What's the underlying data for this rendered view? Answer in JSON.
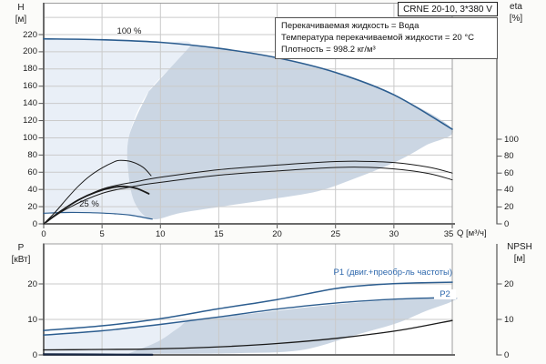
{
  "window": {
    "title_box": "CRNE 20-10, 3*380 V"
  },
  "info_box": {
    "line1": "Перекачиваемая жидкость = Вода",
    "line2": "Температура перекачиваемой жидкости = 20 °C",
    "line3": "Плотность = 998.2 кг/м³"
  },
  "top_chart": {
    "y_axis": {
      "name": "H",
      "unit": "[м]",
      "ticks": [
        0,
        20,
        40,
        60,
        80,
        100,
        120,
        140,
        160,
        180,
        200,
        220
      ]
    },
    "right_axis": {
      "name": "eta",
      "unit": "[%]",
      "ticks": [
        0,
        20,
        40,
        60,
        80,
        100
      ]
    },
    "x_axis": {
      "name": "Q [м³/ч]",
      "ticks": [
        0,
        5,
        10,
        15,
        20,
        25,
        30,
        35
      ]
    },
    "curve_labels": {
      "full_speed": "100 %",
      "min_speed": "25 %"
    }
  },
  "bottom_chart": {
    "y_axis": {
      "name": "P",
      "unit": "[кВт]",
      "ticks": [
        0,
        10,
        20
      ]
    },
    "right_axis": {
      "name": "NPSH",
      "unit": "[м]",
      "ticks": [
        0,
        10,
        20
      ]
    },
    "curve_labels": {
      "p1": "P1 (двиг.+преобр-ль частоты)",
      "p2": "P2"
    }
  },
  "colors": {
    "curve_blue": "#2c5d8f",
    "label_blue": "#2e68ad",
    "fill_light": "#e9eff7",
    "fill_dark": "#cbd6e3",
    "black": "#1a1a1a",
    "navy": "#182743",
    "grid": "#cacaca",
    "frame": "#9e9e9e",
    "axis": "#6a6a6a"
  },
  "chart_data": [
    {
      "type": "line",
      "title": "CRNE 20-10, 3*380 V",
      "xlabel": "Q [м³/ч]",
      "ylabel": "H [м]",
      "y2label": "eta [%]",
      "xlim": [
        0,
        35
      ],
      "ylim": [
        0,
        257
      ],
      "y2lim": [
        0,
        110
      ],
      "grid": true,
      "series": [
        {
          "name": "H_100pct",
          "label": "100 %",
          "axis": "H",
          "points": [
            [
              0,
              215
            ],
            [
              5,
              214
            ],
            [
              10,
              211
            ],
            [
              15,
              204
            ],
            [
              20,
              193
            ],
            [
              25,
              176
            ],
            [
              30,
              150
            ],
            [
              35,
              110
            ]
          ]
        },
        {
          "name": "H_25pct",
          "label": "25 %",
          "axis": "H",
          "points": [
            [
              0,
              12.4
            ],
            [
              2,
              13.2
            ],
            [
              4,
              13
            ],
            [
              6,
              11.8
            ],
            [
              7.5,
              10
            ],
            [
              9.3,
              5.5
            ]
          ]
        },
        {
          "name": "eta_motor",
          "axis": "eta",
          "points": [
            [
              0,
              0
            ],
            [
              2,
              20
            ],
            [
              5,
              41
            ],
            [
              8,
              50
            ],
            [
              10,
              55
            ],
            [
              15,
              64
            ],
            [
              20,
              69.5
            ],
            [
              24,
              73
            ],
            [
              27,
              74
            ],
            [
              30,
              72.5
            ],
            [
              33,
              67
            ],
            [
              35,
              60
            ]
          ]
        },
        {
          "name": "eta_pump",
          "axis": "eta",
          "points": [
            [
              0,
              0
            ],
            [
              2,
              18
            ],
            [
              5,
              36
            ],
            [
              8,
              45
            ],
            [
              10,
              49
            ],
            [
              15,
              57.5
            ],
            [
              20,
              62.5
            ],
            [
              24,
              66
            ],
            [
              27,
              67
            ],
            [
              30,
              65
            ],
            [
              33,
              59.5
            ],
            [
              35,
              52
            ]
          ]
        },
        {
          "name": "eta_25pct_arc",
          "axis": "eta",
          "points": [
            [
              0,
              0
            ],
            [
              1,
              14
            ],
            [
              2,
              30
            ],
            [
              3,
              45
            ],
            [
              4,
              57
            ],
            [
              5,
              66
            ],
            [
              6,
              73
            ],
            [
              6.5,
              75
            ],
            [
              7.5,
              73.5
            ],
            [
              8.5,
              67
            ],
            [
              9.2,
              57
            ]
          ]
        },
        {
          "name": "duty_arc",
          "axis": "H",
          "points": [
            [
              0.2,
              2
            ],
            [
              1.5,
              15
            ],
            [
              3,
              28
            ],
            [
              4.5,
              37
            ],
            [
              6,
              42.5
            ],
            [
              7,
              43.5
            ],
            [
              8,
              41
            ],
            [
              9,
              35
            ]
          ]
        }
      ],
      "regions": [
        {
          "name": "envelope_light",
          "axis": "H",
          "points": [
            [
              0,
              215
            ],
            [
              5,
              214
            ],
            [
              10,
              211
            ],
            [
              12.6,
              207
            ],
            [
              9,
              154
            ],
            [
              7.3,
              101
            ],
            [
              7.3,
              54
            ],
            [
              7.9,
              22
            ],
            [
              9.3,
              5.5
            ],
            [
              6.8,
              10.5
            ],
            [
              3.7,
              13
            ],
            [
              0,
              12.4
            ]
          ]
        },
        {
          "name": "envelope_dark",
          "axis": "H",
          "points": [
            [
              12.6,
              207
            ],
            [
              15,
              204
            ],
            [
              20,
              193
            ],
            [
              25,
              176
            ],
            [
              30,
              150
            ],
            [
              35,
              110
            ],
            [
              32.7,
              91
            ],
            [
              30.3,
              73
            ],
            [
              26.7,
              53
            ],
            [
              23.5,
              38
            ],
            [
              19.6,
              29
            ],
            [
              15.7,
              21
            ],
            [
              11.8,
              13
            ],
            [
              9.3,
              5.5
            ],
            [
              7.9,
              22
            ],
            [
              7.3,
              54
            ],
            [
              7.3,
              101
            ],
            [
              9,
              154
            ]
          ]
        }
      ]
    },
    {
      "type": "line",
      "xlabel": "Q [м³/ч]",
      "ylabel": "P [кВт]",
      "y2label": "NPSH [м]",
      "xlim": [
        0,
        35
      ],
      "ylim": [
        0,
        31
      ],
      "y2lim": [
        0,
        31
      ],
      "grid": true,
      "series": [
        {
          "name": "P1",
          "label": "P1 (двиг.+преобр-ль частоты)",
          "axis": "P",
          "points": [
            [
              0,
              6.9
            ],
            [
              5,
              8.2
            ],
            [
              10,
              10.2
            ],
            [
              15,
              13
            ],
            [
              20,
              15.6
            ],
            [
              25,
              18.7
            ],
            [
              28,
              19.7
            ],
            [
              31,
              20.2
            ],
            [
              35,
              20.5
            ]
          ]
        },
        {
          "name": "P2",
          "label": "P2",
          "axis": "P",
          "points": [
            [
              0,
              5.6
            ],
            [
              5,
              6.8
            ],
            [
              10,
              8.6
            ],
            [
              15,
              10.7
            ],
            [
              20,
              12.9
            ],
            [
              25,
              14.6
            ],
            [
              30,
              15.7
            ],
            [
              35,
              16.2
            ]
          ]
        },
        {
          "name": "NPSH",
          "axis": "P",
          "points": [
            [
              0,
              1.4
            ],
            [
              4,
              1.5
            ],
            [
              8,
              1.6
            ],
            [
              12,
              1.9
            ],
            [
              16,
              2.4
            ],
            [
              20,
              3.2
            ],
            [
              24,
              4.3
            ],
            [
              28,
              5.8
            ],
            [
              31,
              7.2
            ],
            [
              35,
              9.7
            ]
          ]
        },
        {
          "name": "P_25pct",
          "axis": "P",
          "points": [
            [
              0,
              0.15
            ],
            [
              5,
              0.1
            ],
            [
              9.3,
              0.05
            ]
          ]
        }
      ],
      "regions": [
        {
          "name": "envelope_light",
          "axis": "P",
          "points": [
            [
              0,
              5.6
            ],
            [
              4,
              6.7
            ],
            [
              8,
              8
            ],
            [
              12.9,
              10
            ],
            [
              11.5,
              7.5
            ],
            [
              9.8,
              3.8
            ],
            [
              7.2,
              0.3
            ],
            [
              0,
              0.3
            ]
          ]
        },
        {
          "name": "envelope_dark",
          "axis": "P",
          "points": [
            [
              7.2,
              0.3
            ],
            [
              9.8,
              3.8
            ],
            [
              11.5,
              7.5
            ],
            [
              12.9,
              10
            ],
            [
              18,
              11.7
            ],
            [
              24,
              13.9
            ],
            [
              30,
              15.5
            ],
            [
              35,
              16.2
            ],
            [
              35,
              15.1
            ],
            [
              32.7,
              12.3
            ],
            [
              30.3,
              9
            ],
            [
              26.7,
              5.6
            ],
            [
              22,
              1.3
            ],
            [
              16.6,
              0.5
            ],
            [
              12,
              0.3
            ]
          ]
        }
      ]
    }
  ]
}
